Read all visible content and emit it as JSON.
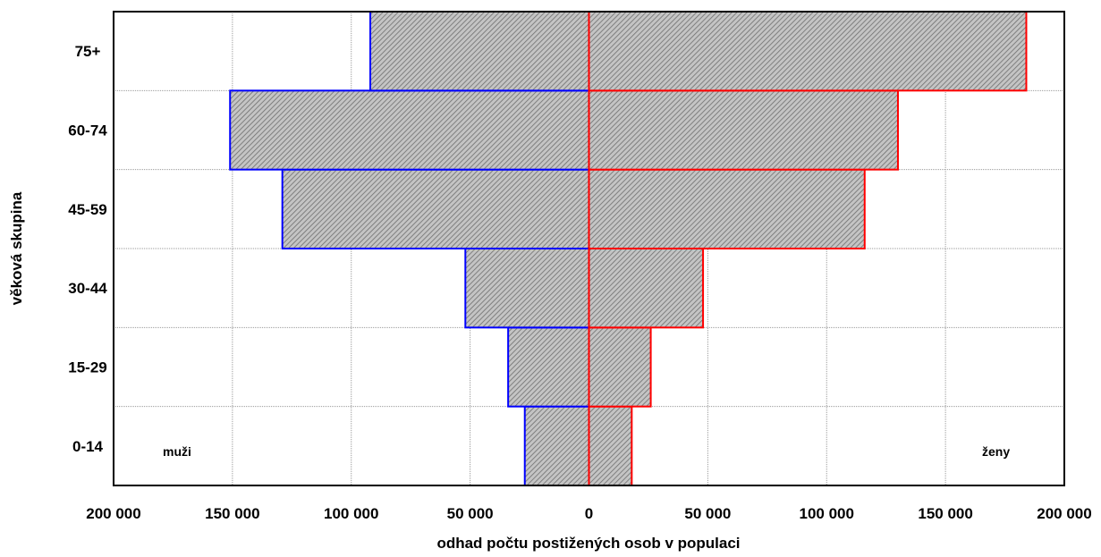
{
  "chart_data": {
    "type": "bar",
    "orientation": "horizontal",
    "subtype": "population-pyramid",
    "categories": [
      "0-14",
      "15-29",
      "30-44",
      "45-59",
      "60-74",
      "75+"
    ],
    "series": [
      {
        "name": "muži",
        "values": [
          -27000,
          -34000,
          -52000,
          -129000,
          -151000,
          -92000
        ],
        "color": "#0000ff"
      },
      {
        "name": "ženy",
        "values": [
          18000,
          26000,
          48000,
          116000,
          130000,
          184000
        ],
        "color": "#ff0000"
      }
    ],
    "xlim": [
      -200000,
      200000
    ],
    "xticks": [
      -200000,
      -150000,
      -100000,
      -50000,
      0,
      50000,
      100000,
      150000,
      200000
    ],
    "xtick_labels": [
      "200 000",
      "150 000",
      "100 000",
      "50 000",
      "0",
      "50 000",
      "100 000",
      "150 000",
      "200 000"
    ],
    "xlabel": "odhad počtu postižených osob v populaci",
    "ylabel": "věková skupina",
    "side_labels": {
      "left": "muži",
      "right": "ženy"
    },
    "grid": true,
    "bar_fill": "#a8a8a8"
  }
}
